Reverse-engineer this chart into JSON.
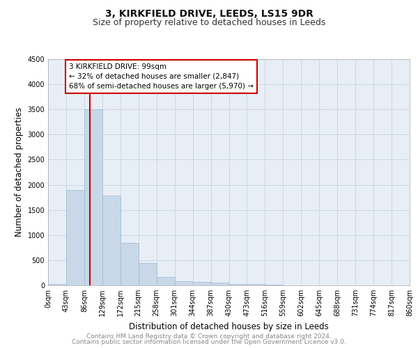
{
  "title": "3, KIRKFIELD DRIVE, LEEDS, LS15 9DR",
  "subtitle": "Size of property relative to detached houses in Leeds",
  "xlabel": "Distribution of detached houses by size in Leeds",
  "ylabel": "Number of detached properties",
  "bin_edges": [
    0,
    43,
    86,
    129,
    172,
    215,
    258,
    301,
    344,
    387,
    430,
    473,
    516,
    559,
    602,
    645,
    688,
    731,
    774,
    817,
    860
  ],
  "bar_heights": [
    30,
    1900,
    3500,
    1780,
    840,
    450,
    160,
    90,
    75,
    50,
    30,
    25,
    10,
    5,
    3,
    2,
    1,
    1,
    0,
    0
  ],
  "bar_color": "#c8d8e8",
  "bar_edge_color": "#a0b8d0",
  "property_size": 99,
  "vline_color": "#cc0000",
  "annotation_line1": "3 KIRKFIELD DRIVE: 99sqm",
  "annotation_line2": "← 32% of detached houses are smaller (2,847)",
  "annotation_line3": "68% of semi-detached houses are larger (5,970) →",
  "annotation_box_color": "#ffffff",
  "annotation_box_edge": "#cc0000",
  "ylim": [
    0,
    4500
  ],
  "xlim": [
    0,
    860
  ],
  "grid_color": "#c8d4e0",
  "background_color": "#e8eef6",
  "footer_line1": "Contains HM Land Registry data © Crown copyright and database right 2024.",
  "footer_line2": "Contains public sector information licensed under the Open Government Licence v3.0.",
  "title_fontsize": 10,
  "subtitle_fontsize": 9,
  "xlabel_fontsize": 8.5,
  "ylabel_fontsize": 8.5,
  "tick_fontsize": 7,
  "annotation_fontsize": 7.5,
  "footer_fontsize": 6.5
}
